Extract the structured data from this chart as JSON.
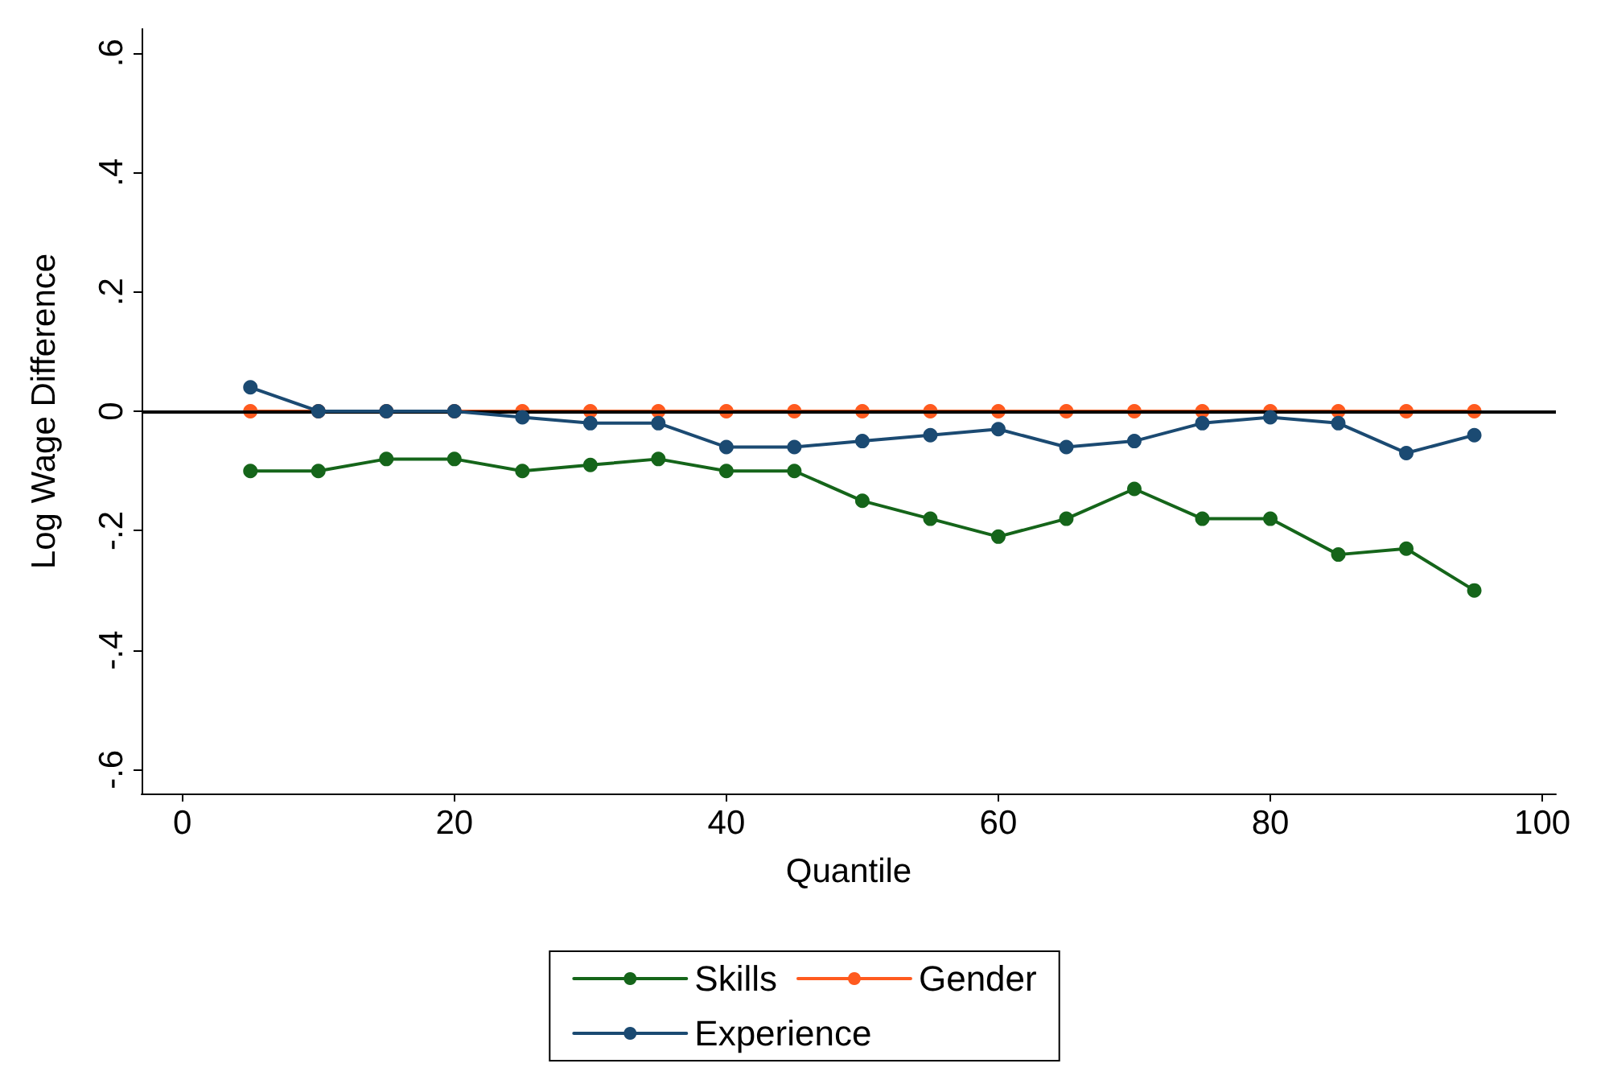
{
  "chart_data": {
    "type": "line",
    "xlabel": "Quantile",
    "ylabel": "Log Wage Difference",
    "x": [
      5,
      10,
      15,
      20,
      25,
      30,
      35,
      40,
      45,
      50,
      55,
      60,
      65,
      70,
      75,
      80,
      85,
      90,
      95
    ],
    "series": [
      {
        "name": "Skills",
        "color": "#15651a",
        "values": [
          -0.1,
          -0.1,
          -0.08,
          -0.08,
          -0.1,
          -0.09,
          -0.08,
          -0.1,
          -0.1,
          -0.15,
          -0.18,
          -0.21,
          -0.18,
          -0.13,
          -0.18,
          -0.18,
          -0.24,
          -0.23,
          -0.3
        ]
      },
      {
        "name": "Gender",
        "color": "#ff5a1f",
        "values": [
          0,
          0,
          0,
          0,
          0,
          0,
          0,
          0,
          0,
          0,
          0,
          0,
          0,
          0,
          0,
          0,
          0,
          0,
          0
        ]
      },
      {
        "name": "Experience",
        "color": "#1b4a72",
        "values": [
          0.04,
          0.0,
          0.0,
          0.0,
          -0.01,
          -0.02,
          -0.02,
          -0.06,
          -0.06,
          -0.05,
          -0.04,
          -0.03,
          -0.06,
          -0.05,
          -0.02,
          -0.01,
          -0.02,
          -0.07,
          -0.04
        ]
      }
    ],
    "xlim": [
      -3,
      101
    ],
    "xticks": [
      0,
      20,
      40,
      60,
      80,
      100
    ],
    "ylim": [
      -0.64,
      0.64
    ],
    "yticks": [
      {
        "value": -0.6,
        "label": "-.6"
      },
      {
        "value": -0.4,
        "label": "-.4"
      },
      {
        "value": -0.2,
        "label": "-.2"
      },
      {
        "value": 0,
        "label": "0"
      },
      {
        "value": 0.2,
        "label": ".2"
      },
      {
        "value": 0.4,
        "label": ".4"
      },
      {
        "value": 0.6,
        "label": ".6"
      }
    ],
    "ref_lines": [
      {
        "axis": "y",
        "value": 0,
        "color": "#000000"
      }
    ],
    "grid": false,
    "legend": "bottom",
    "marker": "circle",
    "line_style": "solid"
  }
}
